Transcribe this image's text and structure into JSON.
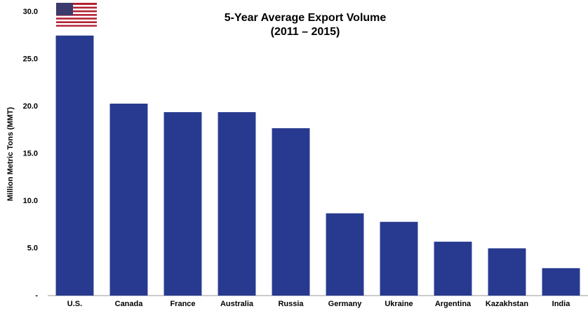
{
  "chart_data": {
    "type": "bar",
    "title": "5-Year Average Export Volume",
    "subtitle": "(2011 – 2015)",
    "y_label": "Million Metric Tons (MMT)",
    "categories": [
      "U.S.",
      "Canada",
      "France",
      "Australia",
      "Russia",
      "Germany",
      "Ukraine",
      "Argentina",
      "Kazakhstan",
      "India"
    ],
    "values": [
      27.5,
      20.3,
      19.4,
      19.4,
      17.7,
      8.7,
      7.8,
      5.7,
      5.0,
      2.9
    ],
    "color": "#283a8f",
    "ylim": [
      0,
      30
    ],
    "yticks": [
      {
        "value": 0,
        "label": "-"
      },
      {
        "value": 5,
        "label": "5.0"
      },
      {
        "value": 10,
        "label": "10.0"
      },
      {
        "value": 15,
        "label": "15.0"
      },
      {
        "value": 20,
        "label": "20.0"
      },
      {
        "value": 25,
        "label": "25.0"
      },
      {
        "value": 30,
        "label": "30.0"
      }
    ],
    "grid": false
  }
}
